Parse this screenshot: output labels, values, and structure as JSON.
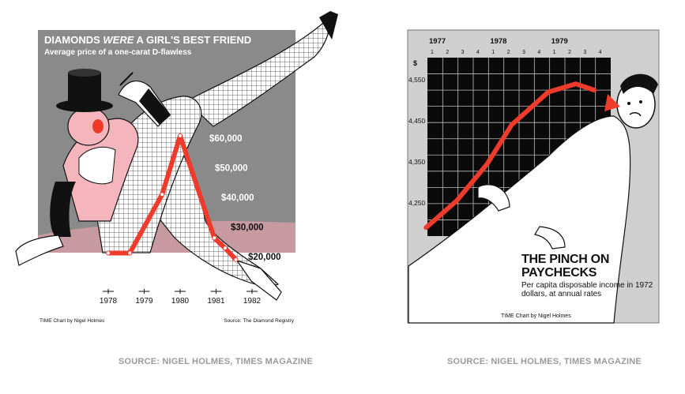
{
  "captions": {
    "left": "SOURCE: NIGEL HOLMES, TIMES MAGAZINE",
    "right": "SOURCE: NIGEL HOLMES, TIMES MAGAZINE"
  },
  "colors": {
    "accent_red": "#ef3b2c",
    "left_background": "#8a8a8a",
    "right_background": "#cfcfcf",
    "grid_black": "#0a0a0a",
    "pink_ground": "#c69aa0"
  },
  "chart_data": [
    {
      "type": "line",
      "title_parts": [
        "DIAMONDS ",
        "WERE",
        " A GIRL'S BEST FRIEND"
      ],
      "subtitle": "Average price of a one-carat D-flawless",
      "x_ticks": [
        "1978",
        "1979",
        "1980",
        "1981",
        "1982"
      ],
      "y_ticks": [
        "$20,000",
        "$30,000",
        "$40,000",
        "$50,000",
        "$60,000"
      ],
      "ylim": [
        20000,
        60000
      ],
      "series": [
        {
          "points": [
            {
              "x": 1978.0,
              "y": 21200
            },
            {
              "x": 1978.6,
              "y": 21200
            },
            {
              "x": 1979.5,
              "y": 41000
            },
            {
              "x": 1980.0,
              "y": 60800
            },
            {
              "x": 1980.95,
              "y": 26300
            },
            {
              "x": 1981.25,
              "y": 22900
            },
            {
              "x": 1981.55,
              "y": 19000
            }
          ]
        }
      ],
      "credit": "TIME Chart by Nigel Holmes",
      "source": "Source: The Diamond Registry"
    },
    {
      "type": "line",
      "title": "THE PINCH ON PAYCHECKS",
      "subtitle": "Per capita disposable income in 1972 dollars, at annual rates",
      "years": [
        "1977",
        "1978",
        "1979"
      ],
      "quarters": [
        "1",
        "2",
        "3",
        "4",
        "1",
        "2",
        "3",
        "4",
        "1",
        "2",
        "3",
        "4"
      ],
      "y_unit": "$",
      "y_ticks": [
        "4,550",
        "4,450",
        "4,350",
        "4,250"
      ],
      "ylim": [
        4190,
        4600
      ],
      "series": [
        {
          "points": [
            {
              "x": 1976.9,
              "y": 4190
            },
            {
              "x": 1977.4,
              "y": 4255
            },
            {
              "x": 1977.9,
              "y": 4345
            },
            {
              "x": 1978.3,
              "y": 4440
            },
            {
              "x": 1978.9,
              "y": 4520
            },
            {
              "x": 1979.35,
              "y": 4540
            },
            {
              "x": 1979.65,
              "y": 4525
            }
          ]
        }
      ],
      "credit": "TIME Chart by Nigel Holmes"
    }
  ]
}
